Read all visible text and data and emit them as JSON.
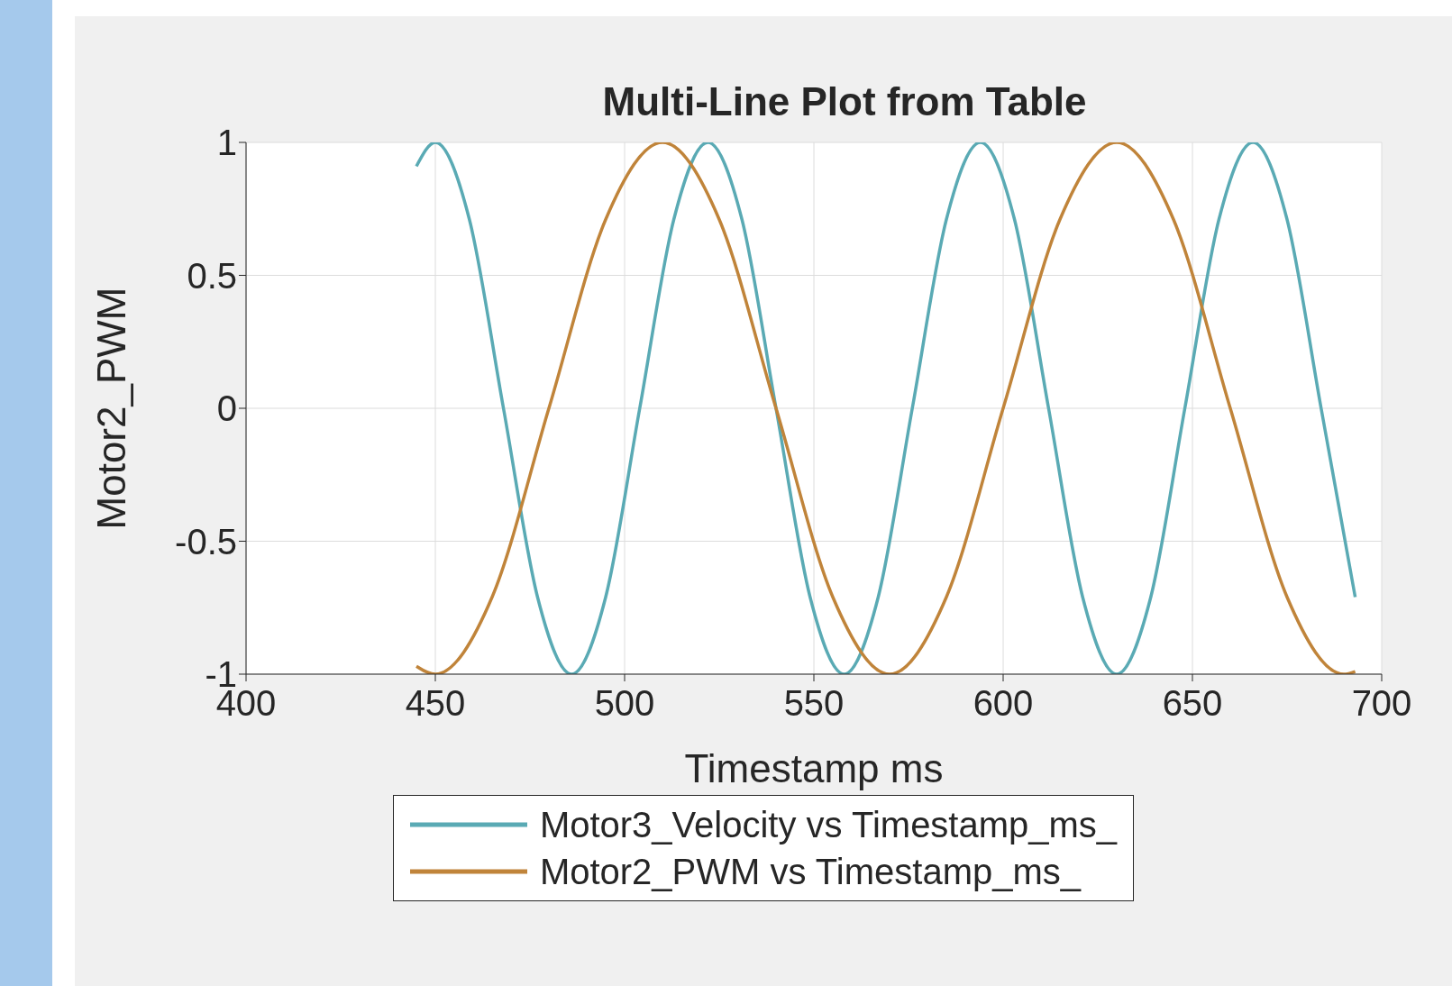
{
  "chart_data": {
    "type": "line",
    "title": "Multi-Line Plot from Table",
    "xlabel": "Timestamp ms",
    "ylabel": "Motor2_PWM",
    "xlim": [
      400,
      700
    ],
    "xticks": [
      400,
      450,
      500,
      550,
      600,
      650,
      700
    ],
    "ylim": [
      -1,
      1
    ],
    "yticks": [
      -1,
      -0.5,
      0,
      0.5,
      1
    ],
    "grid": true,
    "legend": "bottom",
    "marker": "none",
    "line_style": "solid",
    "series": [
      {
        "name": "Motor3_Velocity vs Timestamp_ms_",
        "color": "#5aaab4",
        "x": [
          445,
          450,
          459,
          468,
          477,
          486,
          495,
          504,
          513,
          522,
          531,
          540,
          549,
          558,
          567,
          576,
          585,
          594,
          603,
          612,
          621,
          630,
          639,
          648,
          657,
          666,
          675,
          684,
          693
        ],
        "values": [
          0.91,
          1,
          0.71,
          0,
          -0.71,
          -1,
          -0.71,
          0,
          0.71,
          1,
          0.71,
          0,
          -0.71,
          -1,
          -0.71,
          0,
          0.71,
          1,
          0.71,
          0,
          -0.71,
          -1,
          -0.71,
          0,
          0.71,
          1,
          0.71,
          0,
          -0.71
        ]
      },
      {
        "name": "Motor2_PWM vs Timestamp_ms_",
        "color": "#c0843a",
        "x": [
          445,
          450,
          465,
          480,
          495,
          510,
          525,
          540,
          555,
          570,
          585,
          600,
          615,
          630,
          645,
          660,
          675,
          690,
          693
        ],
        "values": [
          -0.97,
          -1,
          -0.71,
          0,
          0.71,
          1,
          0.71,
          0,
          -0.71,
          -1,
          -0.71,
          0,
          0.71,
          1,
          0.71,
          0,
          -0.71,
          -1,
          -0.99
        ]
      }
    ]
  }
}
